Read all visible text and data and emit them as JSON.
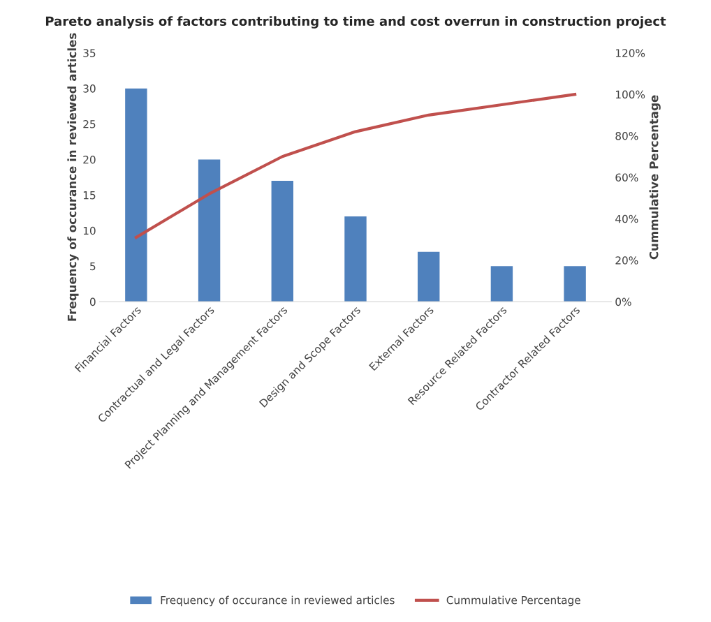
{
  "chart_data": {
    "type": "bar",
    "title": "Pareto analysis of factors contributing to time and cost overrun in construction project",
    "ylabel": "Frequency of occurance in reviewed articles",
    "y2label": "Cummulative Percentage",
    "categories": [
      "Financial Factors",
      "Contractual and Legal Factors",
      "Project Planning and Management Factors",
      "Design and Scope Factors",
      "External Factors",
      "Resource Related Factors",
      "Contractor Related Factors"
    ],
    "series": [
      {
        "name": "Frequency of occurance in reviewed articles",
        "color": "#4f81bd",
        "values": [
          30,
          20,
          17,
          12,
          7,
          5,
          5
        ]
      },
      {
        "name": "Cummulative Percentage",
        "color": "#c0504d",
        "type": "line",
        "axis": "y2",
        "values": [
          31,
          52,
          70,
          82,
          90,
          95,
          100
        ]
      }
    ],
    "ylim": [
      0,
      35
    ],
    "yticks": [
      0,
      5,
      10,
      15,
      20,
      25,
      30,
      35
    ],
    "y2lim": [
      0,
      120
    ],
    "y2ticks": [
      {
        "value": 0,
        "label": "0%"
      },
      {
        "value": 20,
        "label": "20%"
      },
      {
        "value": 40,
        "label": "40%"
      },
      {
        "value": 60,
        "label": "60%"
      },
      {
        "value": 80,
        "label": "80%"
      },
      {
        "value": 100,
        "label": "100%"
      },
      {
        "value": 120,
        "label": "120%"
      }
    ],
    "grid": false,
    "legend": "bottom",
    "marker": "none",
    "line_style": "solid"
  }
}
